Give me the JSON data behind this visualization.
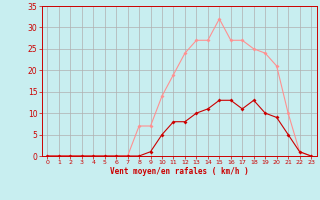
{
  "x_labels": [
    0,
    1,
    2,
    3,
    4,
    5,
    6,
    7,
    8,
    9,
    10,
    11,
    12,
    13,
    14,
    15,
    16,
    17,
    18,
    19,
    20,
    21,
    22,
    23
  ],
  "rafales": [
    0,
    0,
    0,
    0,
    0,
    0,
    0,
    0,
    7,
    7,
    14,
    19,
    24,
    27,
    27,
    32,
    27,
    27,
    25,
    24,
    21,
    10,
    1,
    0
  ],
  "moyen": [
    0,
    0,
    0,
    0,
    0,
    0,
    0,
    0,
    0,
    1,
    5,
    8,
    8,
    10,
    11,
    13,
    13,
    11,
    13,
    10,
    9,
    5,
    1,
    0
  ],
  "bg_color": "#c8eef0",
  "grid_color": "#b0b0b0",
  "line_color_rafales": "#ff9090",
  "line_color_moyen": "#cc0000",
  "marker_color_rafales": "#ff9090",
  "marker_color_moyen": "#cc0000",
  "xlabel": "Vent moyen/en rafales ( km/h )",
  "xlabel_color": "#cc0000",
  "tick_color": "#cc0000",
  "spine_color": "#cc0000",
  "ylim": [
    0,
    35
  ],
  "yticks": [
    0,
    5,
    10,
    15,
    20,
    25,
    30,
    35
  ],
  "xlim": [
    -0.5,
    23.5
  ]
}
